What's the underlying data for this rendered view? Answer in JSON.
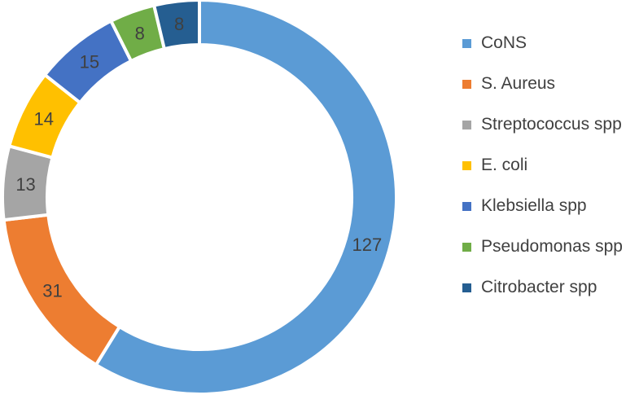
{
  "chart_data": {
    "type": "pie",
    "variant": "donut",
    "title": "",
    "legend_position": "right",
    "slices": [
      {
        "label": "CoNS",
        "value": 127,
        "color": "#5B9BD5"
      },
      {
        "label": "S. Aureus",
        "value": 31,
        "color": "#ED7D31"
      },
      {
        "label": "Streptococcus spp",
        "value": 13,
        "color": "#A5A5A5"
      },
      {
        "label": "E. coli",
        "value": 14,
        "color": "#FFC000"
      },
      {
        "label": "Klebsiella spp",
        "value": 15,
        "color": "#4472C4"
      },
      {
        "label": "Pseudomonas spp",
        "value": 8,
        "color": "#70AD47"
      },
      {
        "label": "Citrobacter spp",
        "value": 8,
        "color": "#255E91"
      }
    ]
  }
}
